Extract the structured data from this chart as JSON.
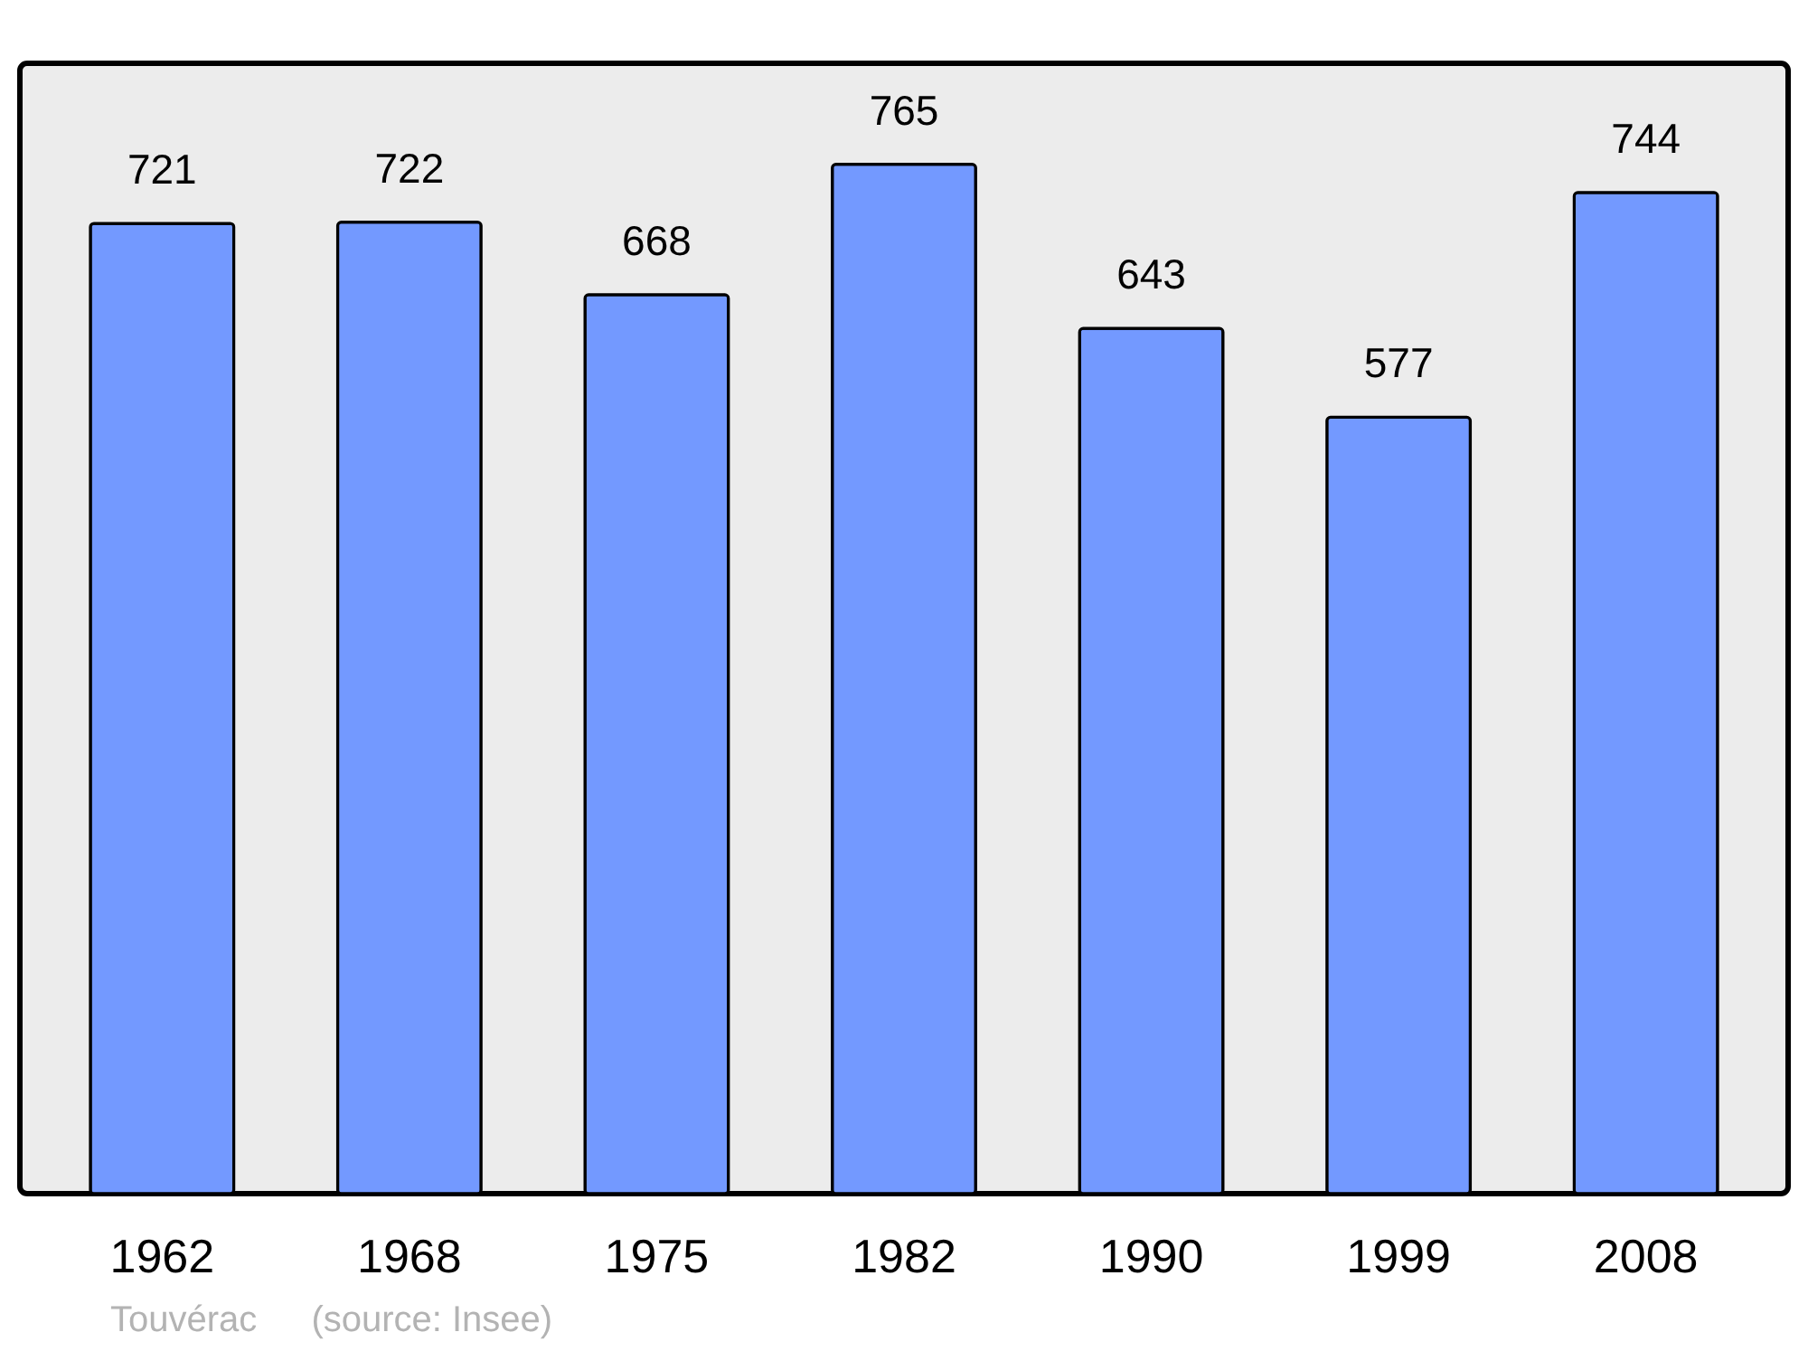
{
  "chart_data": {
    "type": "bar",
    "categories": [
      "1962",
      "1968",
      "1975",
      "1982",
      "1990",
      "1999",
      "2008"
    ],
    "values": [
      721,
      722,
      668,
      765,
      643,
      577,
      744
    ],
    "color": "#7399ff",
    "ylim": [
      0,
      840
    ],
    "data_labels": true,
    "tick_labels": "x",
    "annotations": [
      "Touvérac",
      "(source: Insee)"
    ]
  }
}
